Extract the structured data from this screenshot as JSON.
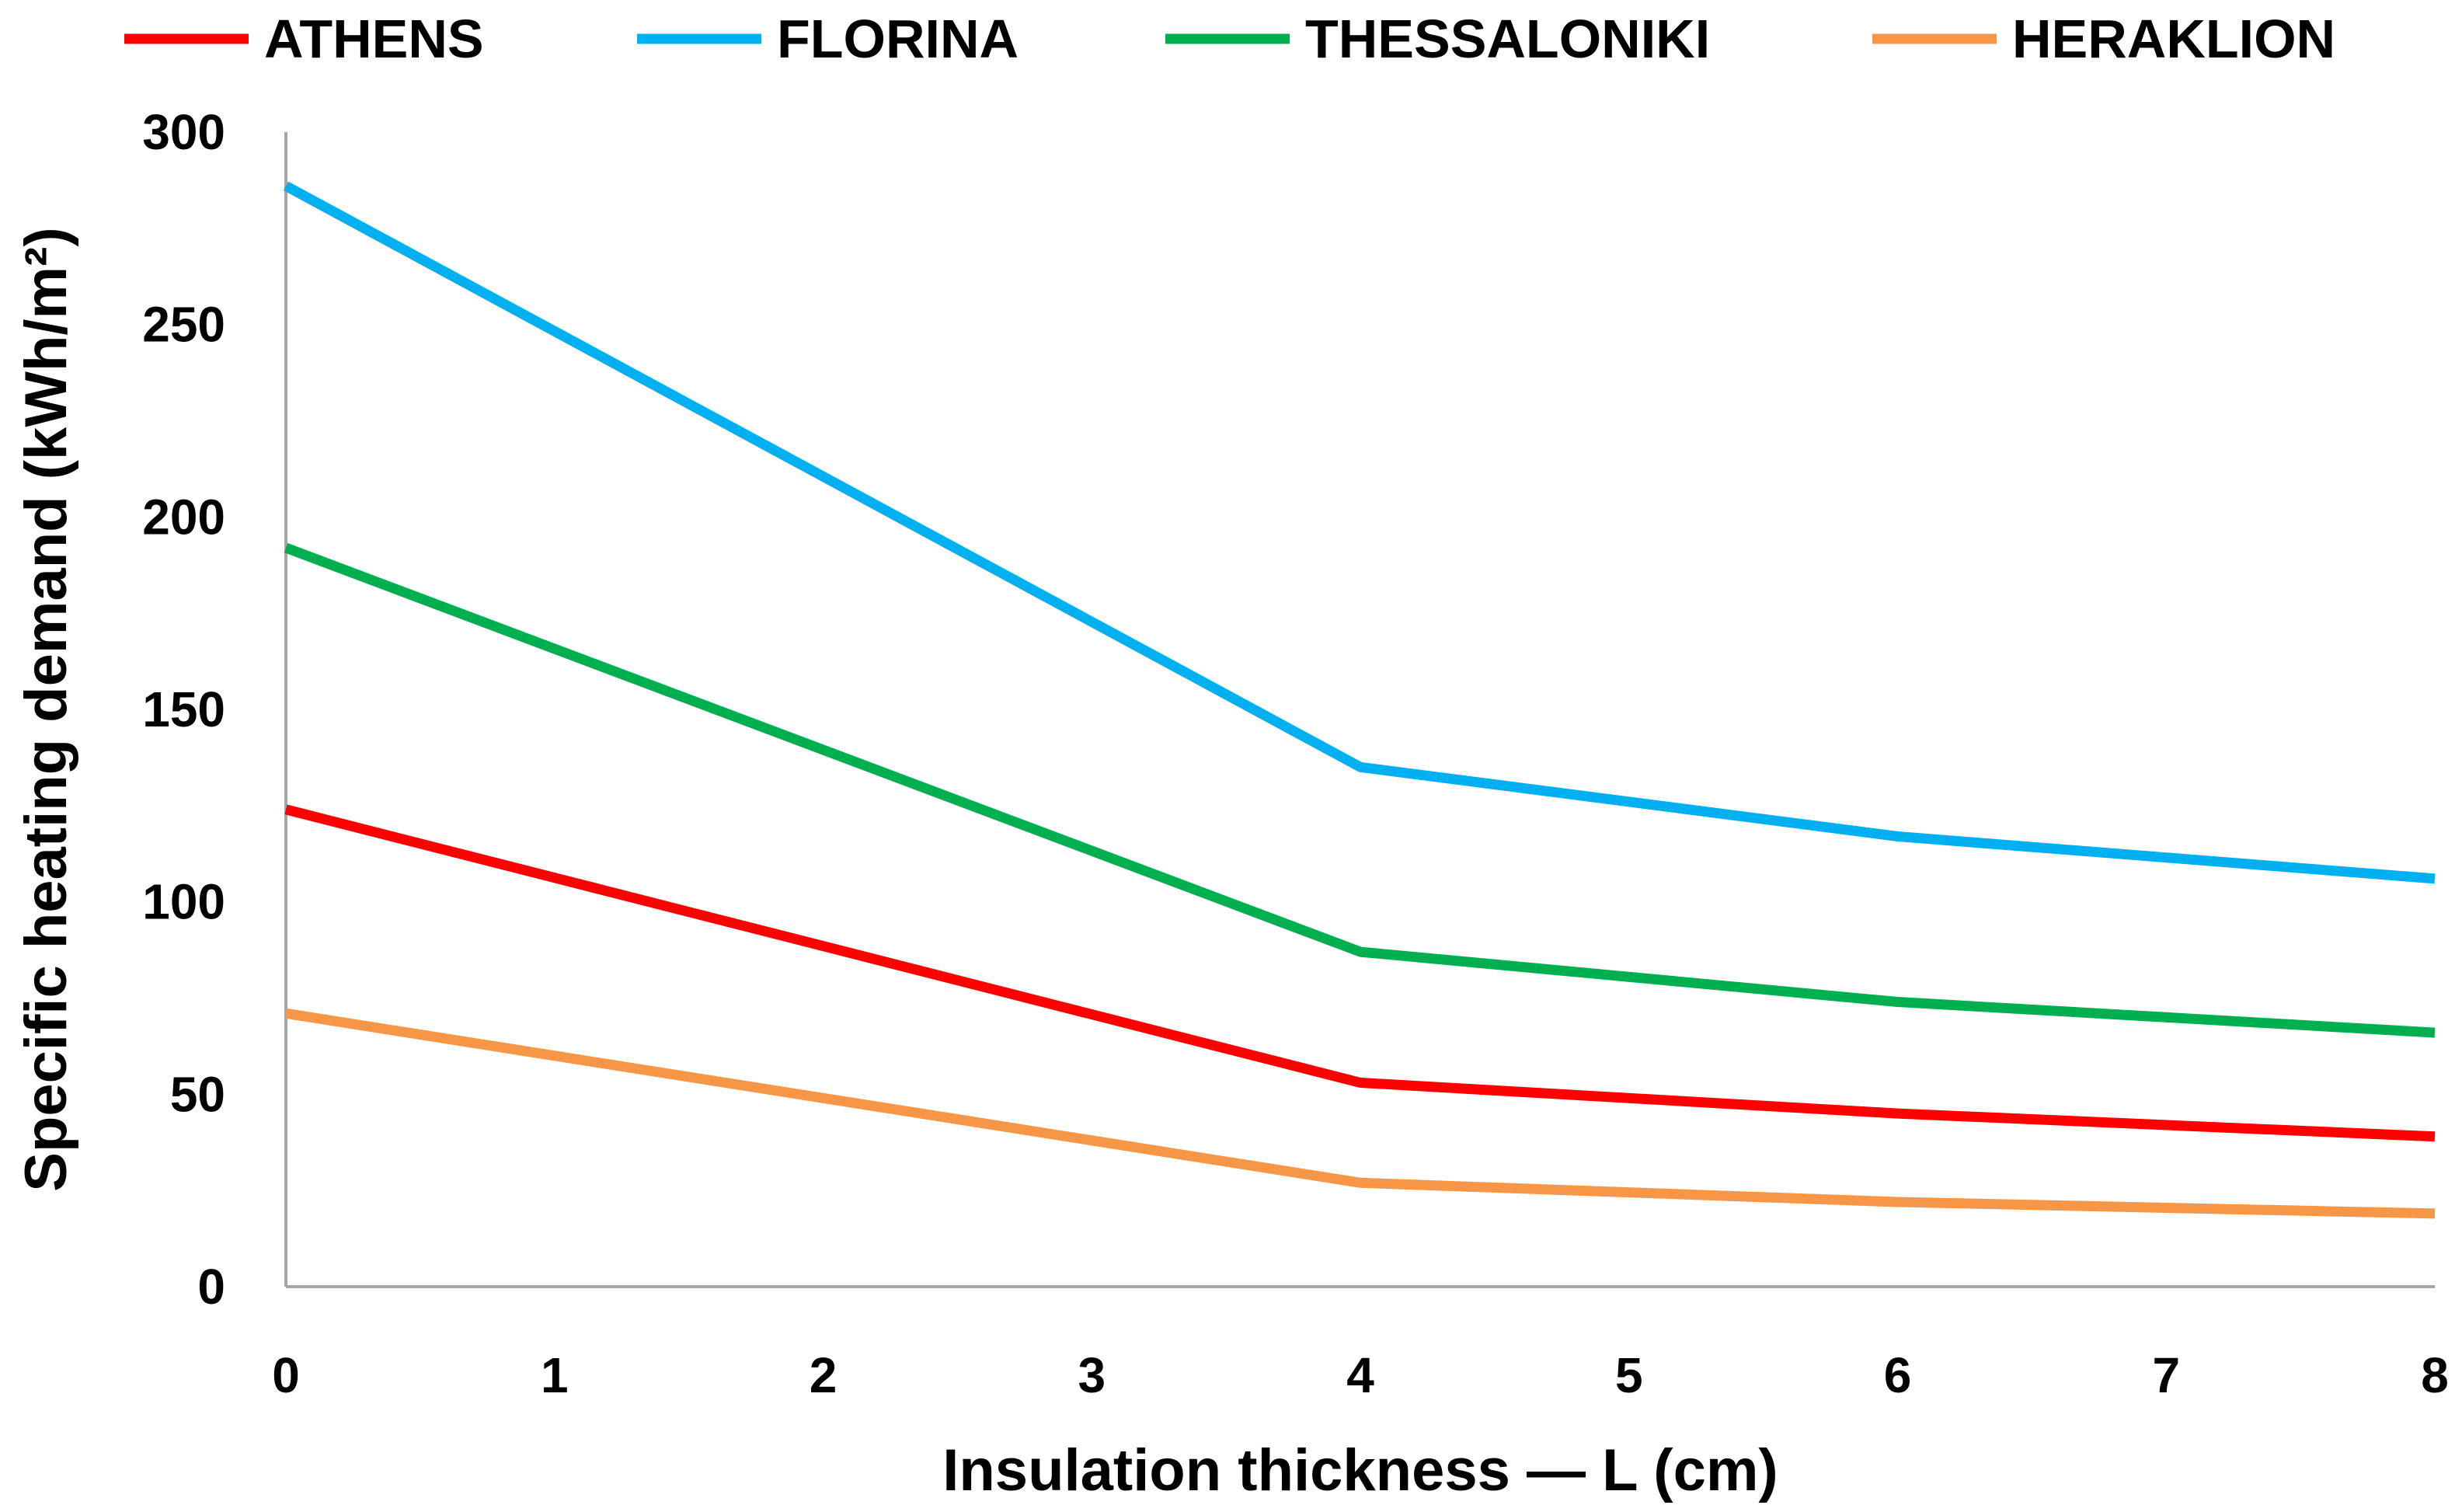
{
  "chart_data": {
    "type": "line",
    "title": "",
    "xlabel": "Insulation thickness — L (cm)",
    "ylabel": "Specific heating demand (kWh/m²)",
    "xlim": [
      0,
      8
    ],
    "ylim": [
      0,
      300
    ],
    "xticks": [
      0,
      1,
      2,
      3,
      4,
      5,
      6,
      7,
      8
    ],
    "yticks": [
      0,
      50,
      100,
      150,
      200,
      250,
      300
    ],
    "grid": false,
    "legend_position": "top",
    "x": [
      0,
      4,
      6,
      8
    ],
    "series": [
      {
        "name": "ATHENS",
        "color": "#ff0000",
        "values": [
          124,
          53,
          45,
          39
        ]
      },
      {
        "name": "FLORINA",
        "color": "#00b0f0",
        "values": [
          286,
          135,
          117,
          106
        ]
      },
      {
        "name": "THESSALONIKI",
        "color": "#00b050",
        "values": [
          192,
          87,
          74,
          66
        ]
      },
      {
        "name": "HERAKLION",
        "color": "#f79646",
        "values": [
          71,
          27,
          22,
          19
        ]
      }
    ]
  }
}
